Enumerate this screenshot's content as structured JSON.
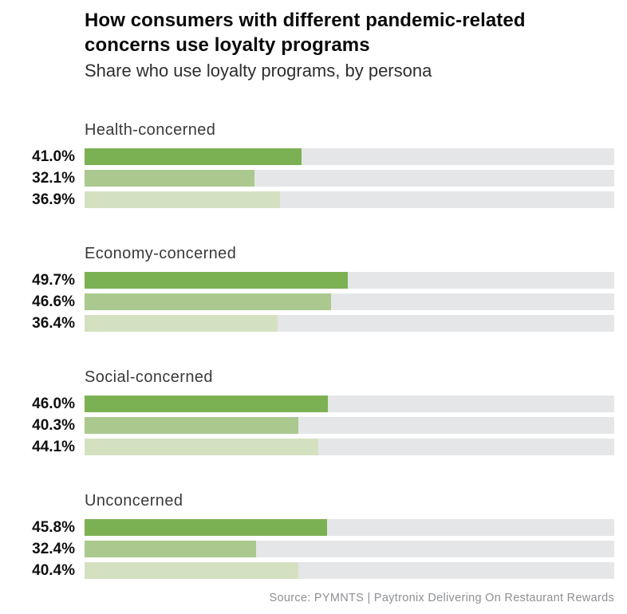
{
  "header": {
    "title_line1": "How consumers with different pandemic-related",
    "title_line2": "concerns use loyalty programs",
    "subtitle": "Share who use loyalty programs, by persona"
  },
  "footer": {
    "source": "Source: PYMNTS | Paytronix Delivering On Restaurant Rewards"
  },
  "chart_data": {
    "type": "bar",
    "orientation": "horizontal",
    "title": "How consumers with different pandemic-related concerns use loyalty programs",
    "subtitle": "Share who use loyalty programs, by persona",
    "unit": "%",
    "xlim": [
      0,
      100
    ],
    "value_label_format": "one_decimal_percent",
    "groups": [
      {
        "label": "Health-concerned",
        "values": [
          41.0,
          32.1,
          36.9
        ]
      },
      {
        "label": "Economy-concerned",
        "values": [
          49.7,
          46.6,
          36.4
        ]
      },
      {
        "label": "Social-concerned",
        "values": [
          46.0,
          40.3,
          44.1
        ]
      },
      {
        "label": "Unconcerned",
        "values": [
          45.8,
          32.4,
          40.4
        ]
      }
    ],
    "bar_colors": [
      "#7cb153",
      "#abc98e",
      "#d4e1c0"
    ],
    "track_color": "#e5e6e8",
    "legend": null,
    "grid": false,
    "source": "Source: PYMNTS | Paytronix Delivering On Restaurant Rewards"
  }
}
